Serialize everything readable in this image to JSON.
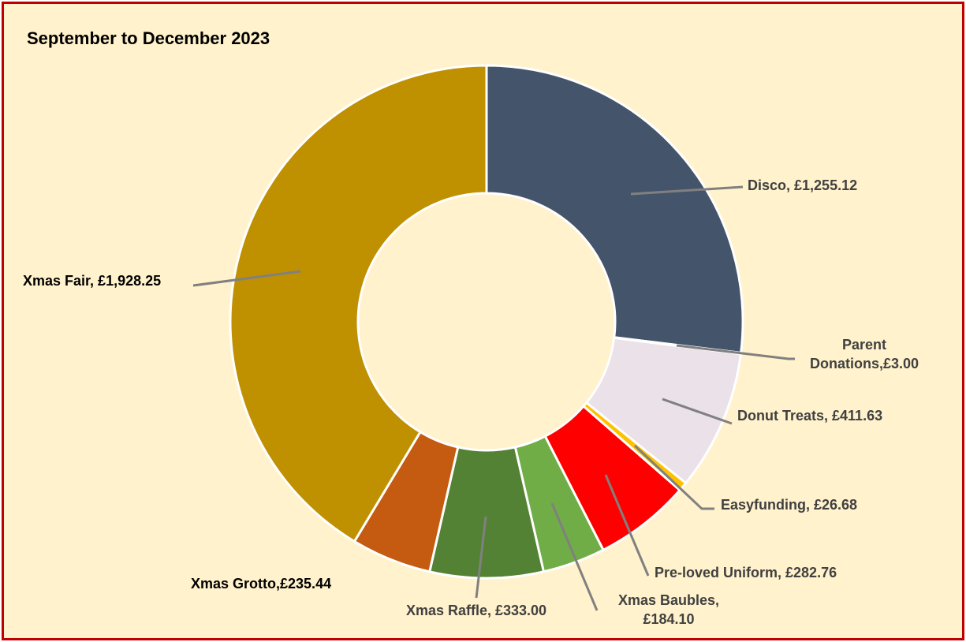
{
  "chart_data": {
    "type": "pie",
    "variant": "doughnut",
    "title": "September to December 2023",
    "currency": "£",
    "slices": [
      {
        "name": "Disco",
        "value": 1255.12,
        "color": "#44546a",
        "label_lines": [
          "Disco, £1,255.12"
        ],
        "label_color": "#404040"
      },
      {
        "name": "Parent Donations",
        "value": 3.0,
        "color": "#d9d9d9",
        "label_lines": [
          "Parent",
          "Donations,£3.00"
        ],
        "label_color": "#404040"
      },
      {
        "name": "Donut Treats",
        "value": 411.63,
        "color": "#ebe1e8",
        "label_lines": [
          "Donut Treats, £411.63"
        ],
        "label_color": "#404040"
      },
      {
        "name": "Easyfunding",
        "value": 26.68,
        "color": "#ffc000",
        "label_lines": [
          "Easyfunding, £26.68"
        ],
        "label_color": "#404040"
      },
      {
        "name": "Pre-loved Uniform",
        "value": 282.76,
        "color": "#ff0000",
        "label_lines": [
          "Pre-loved Uniform, £282.76"
        ],
        "label_color": "#404040"
      },
      {
        "name": "Xmas Baubles",
        "value": 184.1,
        "color": "#70ad47",
        "label_lines": [
          "Xmas Baubles,",
          "£184.10"
        ],
        "label_color": "#404040"
      },
      {
        "name": "Xmas Raffle",
        "value": 333.0,
        "color": "#548235",
        "label_lines": [
          "Xmas Raffle, £333.00"
        ],
        "label_color": "#404040"
      },
      {
        "name": "Xmas Grotto",
        "value": 235.44,
        "color": "#c55a11",
        "label_lines": [
          "Xmas Grotto,£235.44"
        ],
        "label_color": "#000000"
      },
      {
        "name": "Xmas Fair",
        "value": 1928.25,
        "color": "#bf9000",
        "label_lines": [
          "Xmas Fair, £1,928.25"
        ],
        "label_color": "#000000"
      }
    ],
    "legend": "none"
  }
}
